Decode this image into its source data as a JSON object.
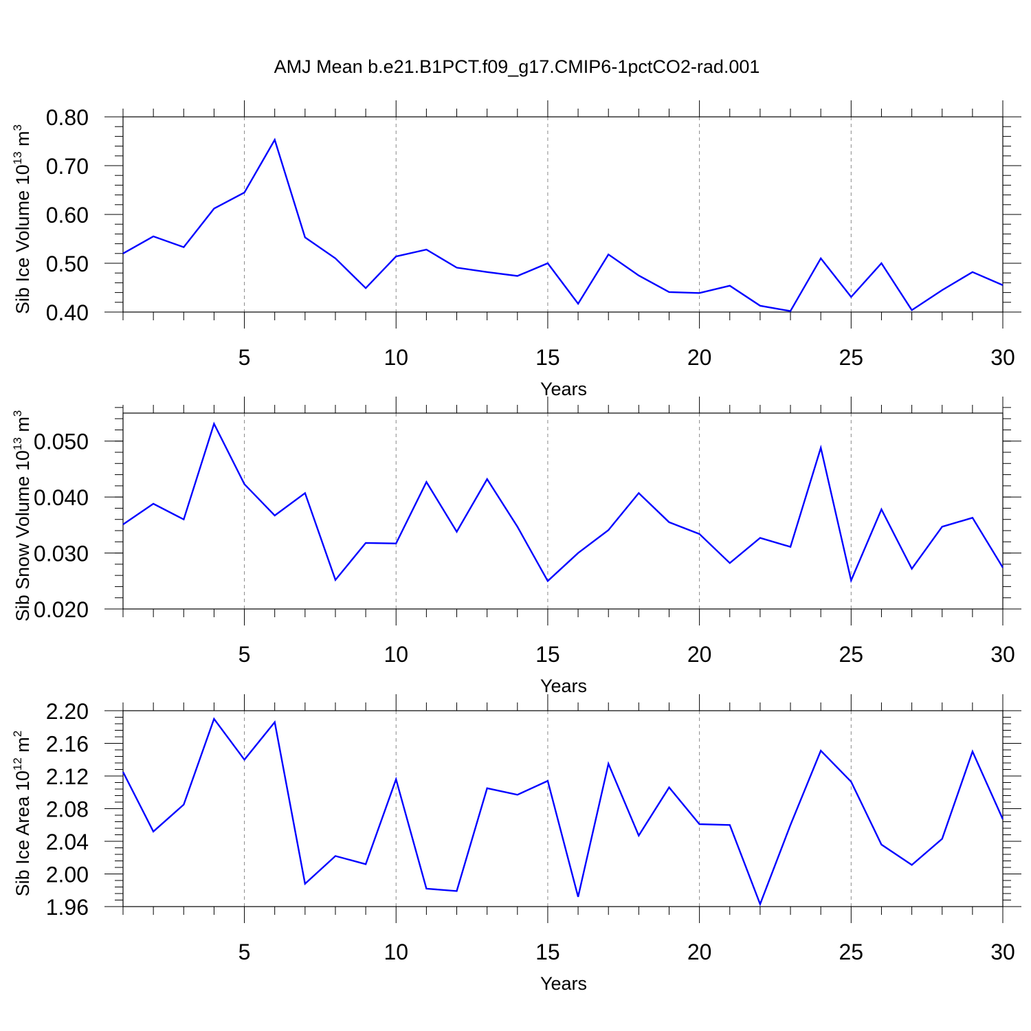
{
  "figure": {
    "title": "AMJ Mean b.e21.B1PCT.f09_g17.CMIP6-1pctCO2-rad.001",
    "line_color": "#0000ff",
    "grid_color": "#888888"
  },
  "chart_data": [
    {
      "type": "line",
      "ylabel": {
        "base": "Sib Ice Volume 10",
        "exp": "13",
        "unit": " m",
        "unit_exp": "3"
      },
      "xlabel": "Years",
      "xlim": [
        1,
        30
      ],
      "ylim": [
        0.4,
        0.8
      ],
      "yticks": [
        0.4,
        0.5,
        0.6,
        0.7,
        0.8
      ],
      "ytick_labels": [
        "0.40",
        "0.50",
        "0.60",
        "0.70",
        "0.80"
      ],
      "yminor_step": 0.02,
      "xticks": [
        5,
        10,
        15,
        20,
        25,
        30
      ],
      "xtick_labels": [
        "5",
        "10",
        "15",
        "20",
        "25",
        "30"
      ],
      "x": [
        1,
        2,
        3,
        4,
        5,
        6,
        7,
        8,
        9,
        10,
        11,
        12,
        13,
        14,
        15,
        16,
        17,
        18,
        19,
        20,
        21,
        22,
        23,
        24,
        25,
        26,
        27,
        28,
        29,
        30
      ],
      "y": [
        0.52,
        0.555,
        0.533,
        0.612,
        0.645,
        0.753,
        0.553,
        0.51,
        0.449,
        0.514,
        0.528,
        0.491,
        0.482,
        0.474,
        0.5,
        0.417,
        0.518,
        0.475,
        0.441,
        0.439,
        0.454,
        0.413,
        0.402,
        0.51,
        0.431,
        0.5,
        0.404,
        0.445,
        0.482,
        0.455
      ]
    },
    {
      "type": "line",
      "ylabel": {
        "base": "Sib Snow Volume 10",
        "exp": "13",
        "unit": " m",
        "unit_exp": "3"
      },
      "xlabel": "Years",
      "xlim": [
        1,
        30
      ],
      "ylim": [
        0.02,
        0.055
      ],
      "yticks": [
        0.02,
        0.03,
        0.04,
        0.05
      ],
      "ytick_labels": [
        "0.020",
        "0.030",
        "0.040",
        "0.050"
      ],
      "yminor_step": 0.002,
      "xticks": [
        5,
        10,
        15,
        20,
        25,
        30
      ],
      "xtick_labels": [
        "5",
        "10",
        "15",
        "20",
        "25",
        "30"
      ],
      "x": [
        1,
        2,
        3,
        4,
        5,
        6,
        7,
        8,
        9,
        10,
        11,
        12,
        13,
        14,
        15,
        16,
        17,
        18,
        19,
        20,
        21,
        22,
        23,
        24,
        25,
        26,
        27,
        28,
        29,
        30
      ],
      "y": [
        0.0351,
        0.0388,
        0.036,
        0.0531,
        0.0423,
        0.0367,
        0.0407,
        0.0252,
        0.0318,
        0.0317,
        0.0427,
        0.0338,
        0.0432,
        0.0347,
        0.025,
        0.03,
        0.0341,
        0.0407,
        0.0355,
        0.0334,
        0.0282,
        0.0327,
        0.0311,
        0.0488,
        0.0251,
        0.0378,
        0.0272,
        0.0347,
        0.0363,
        0.0274
      ]
    },
    {
      "type": "line",
      "ylabel": {
        "base": "Sib Ice Area 10",
        "exp": "12",
        "unit": " m",
        "unit_exp": "2"
      },
      "xlabel": "Years",
      "xlim": [
        1,
        30
      ],
      "ylim": [
        1.96,
        2.2
      ],
      "yticks": [
        1.96,
        2.0,
        2.04,
        2.08,
        2.12,
        2.16,
        2.2
      ],
      "ytick_labels": [
        "1.96",
        "2.00",
        "2.04",
        "2.08",
        "2.12",
        "2.16",
        "2.20"
      ],
      "yminor_step": 0.008,
      "xticks": [
        5,
        10,
        15,
        20,
        25,
        30
      ],
      "xtick_labels": [
        "5",
        "10",
        "15",
        "20",
        "25",
        "30"
      ],
      "x": [
        1,
        2,
        3,
        4,
        5,
        6,
        7,
        8,
        9,
        10,
        11,
        12,
        13,
        14,
        15,
        16,
        17,
        18,
        19,
        20,
        21,
        22,
        23,
        24,
        25,
        26,
        27,
        28,
        29,
        30
      ],
      "y": [
        2.125,
        2.052,
        2.085,
        2.19,
        2.14,
        2.186,
        1.988,
        2.022,
        2.012,
        2.116,
        1.982,
        1.979,
        2.105,
        2.097,
        2.114,
        1.972,
        2.135,
        2.047,
        2.106,
        2.061,
        2.06,
        1.963,
        2.06,
        2.151,
        2.113,
        2.036,
        2.011,
        2.043,
        2.15,
        2.067
      ]
    }
  ]
}
